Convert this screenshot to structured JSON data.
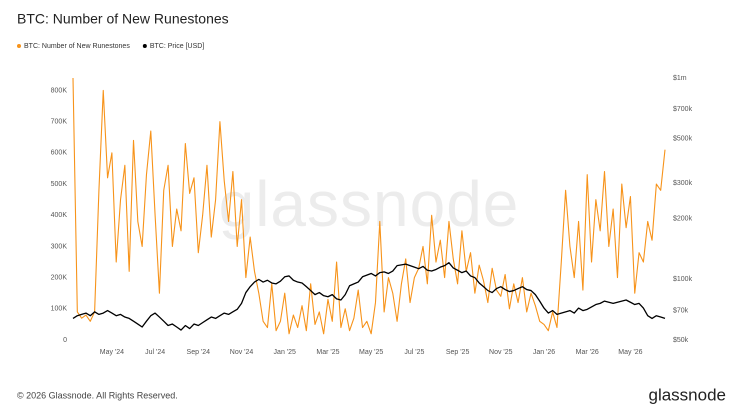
{
  "chart_data": {
    "type": "line",
    "title": "BTC: Number of New Runestones",
    "watermark": "glassnode",
    "copyright": "© 2026 Glassnode. All Rights Reserved.",
    "brand": "glassnode",
    "categories": [
      null,
      null,
      null,
      null,
      null,
      null,
      null,
      null,
      null,
      "May '24",
      null,
      null,
      null,
      null,
      null,
      null,
      null,
      null,
      null,
      "Jul '24",
      null,
      null,
      null,
      null,
      null,
      null,
      null,
      null,
      null,
      "Sep '24",
      null,
      null,
      null,
      null,
      null,
      null,
      null,
      null,
      null,
      "Nov '24",
      null,
      null,
      null,
      null,
      null,
      null,
      null,
      null,
      null,
      "Jan '25",
      null,
      null,
      null,
      null,
      null,
      null,
      null,
      null,
      null,
      "Mar '25",
      null,
      null,
      null,
      null,
      null,
      null,
      null,
      null,
      null,
      "May '25",
      null,
      null,
      null,
      null,
      null,
      null,
      null,
      null,
      null,
      "Jul '25",
      null,
      null,
      null,
      null,
      null,
      null,
      null,
      null,
      null,
      "Sep '25",
      null,
      null,
      null,
      null,
      null,
      null,
      null,
      null,
      null,
      "Nov '25",
      null,
      null,
      null,
      null,
      null,
      null,
      null,
      null,
      null,
      "Jan '26",
      null,
      null,
      null,
      null,
      null,
      null,
      null,
      null,
      null,
      "Mar '26",
      null,
      null,
      null,
      null,
      null,
      null,
      null,
      null,
      null,
      "May '26",
      null,
      null,
      null,
      null,
      null,
      null,
      null,
      null
    ],
    "series": [
      {
        "name": "BTC: Number of New Runestones",
        "color": "#f7931a",
        "axis": "y",
        "values": [
          840000,
          90000,
          70000,
          80000,
          60000,
          90000,
          480000,
          800000,
          520000,
          600000,
          250000,
          450000,
          560000,
          220000,
          640000,
          380000,
          300000,
          530000,
          670000,
          400000,
          150000,
          480000,
          560000,
          300000,
          420000,
          350000,
          630000,
          470000,
          520000,
          280000,
          400000,
          560000,
          330000,
          450000,
          700000,
          510000,
          380000,
          540000,
          300000,
          450000,
          200000,
          330000,
          220000,
          150000,
          60000,
          40000,
          180000,
          30000,
          60000,
          150000,
          20000,
          80000,
          40000,
          110000,
          30000,
          180000,
          50000,
          90000,
          20000,
          130000,
          60000,
          250000,
          40000,
          100000,
          30000,
          70000,
          160000,
          40000,
          60000,
          20000,
          120000,
          380000,
          90000,
          200000,
          150000,
          60000,
          180000,
          260000,
          120000,
          200000,
          230000,
          300000,
          180000,
          400000,
          250000,
          320000,
          200000,
          380000,
          260000,
          180000,
          350000,
          220000,
          280000,
          150000,
          240000,
          190000,
          120000,
          230000,
          160000,
          140000,
          210000,
          100000,
          180000,
          120000,
          200000,
          90000,
          150000,
          110000,
          60000,
          50000,
          30000,
          90000,
          40000,
          250000,
          480000,
          300000,
          200000,
          380000,
          160000,
          530000,
          250000,
          450000,
          350000,
          540000,
          300000,
          420000,
          200000,
          500000,
          360000,
          460000,
          150000,
          280000,
          250000,
          380000,
          320000,
          500000,
          480000,
          610000
        ]
      },
      {
        "name": "BTC: Price [USD]",
        "color": "#000000",
        "axis": "y2",
        "values": [
          64000,
          66000,
          67000,
          68000,
          66000,
          69000,
          67000,
          68000,
          70000,
          68000,
          66000,
          67000,
          65000,
          64000,
          62000,
          60000,
          58000,
          62000,
          66000,
          68000,
          65000,
          62000,
          59000,
          60000,
          58000,
          56000,
          59000,
          57000,
          60000,
          59000,
          61000,
          63000,
          65000,
          64000,
          66000,
          68000,
          67000,
          69000,
          71000,
          76000,
          86000,
          92000,
          97000,
          100000,
          97000,
          99000,
          96000,
          95000,
          98000,
          103000,
          104000,
          99000,
          97000,
          96000,
          92000,
          88000,
          84000,
          86000,
          83000,
          82000,
          84000,
          80000,
          79000,
          84000,
          93000,
          95000,
          97000,
          103000,
          105000,
          107000,
          104000,
          108000,
          109000,
          107000,
          110000,
          117000,
          118000,
          119000,
          117000,
          115000,
          113000,
          116000,
          111000,
          110000,
          112000,
          115000,
          117000,
          121000,
          114000,
          111000,
          108000,
          110000,
          104000,
          102000,
          96000,
          92000,
          88000,
          86000,
          90000,
          92000,
          89000,
          87000,
          88000,
          90000,
          92000,
          89000,
          88000,
          84000,
          78000,
          72000,
          68000,
          70000,
          67000,
          68000,
          69000,
          70000,
          68000,
          72000,
          70000,
          71000,
          73000,
          75000,
          76000,
          78000,
          77000,
          76000,
          77000,
          78000,
          79000,
          77000,
          75000,
          76000,
          72000,
          66000,
          64000,
          66000,
          65000,
          64000
        ]
      }
    ],
    "ylim": [
      0,
      840000
    ],
    "yticks": [
      0,
      {
        "value": 100000,
        "label": "100K"
      },
      {
        "value": 200000,
        "label": "200K"
      },
      {
        "value": 300000,
        "label": "300K"
      },
      {
        "value": 400000,
        "label": "400K"
      },
      {
        "value": 500000,
        "label": "500K"
      },
      {
        "value": 600000,
        "label": "600K"
      },
      {
        "value": 700000,
        "label": "700K"
      },
      {
        "value": 800000,
        "label": "800K"
      }
    ],
    "y2lim": [
      50000,
      1000000
    ],
    "y2log": true,
    "y2ticks": [
      {
        "value": 50000,
        "label": "$50k"
      },
      {
        "value": 70000,
        "label": "$70k"
      },
      {
        "value": 100000,
        "label": "$100k"
      },
      {
        "value": 200000,
        "label": "$200k"
      },
      {
        "value": 300000,
        "label": "$300k"
      },
      {
        "value": 500000,
        "label": "$500k"
      },
      {
        "value": 700000,
        "label": "$700k"
      },
      {
        "value": 1000000,
        "label": "$1m"
      }
    ],
    "grid": false,
    "legend": "top-left"
  }
}
